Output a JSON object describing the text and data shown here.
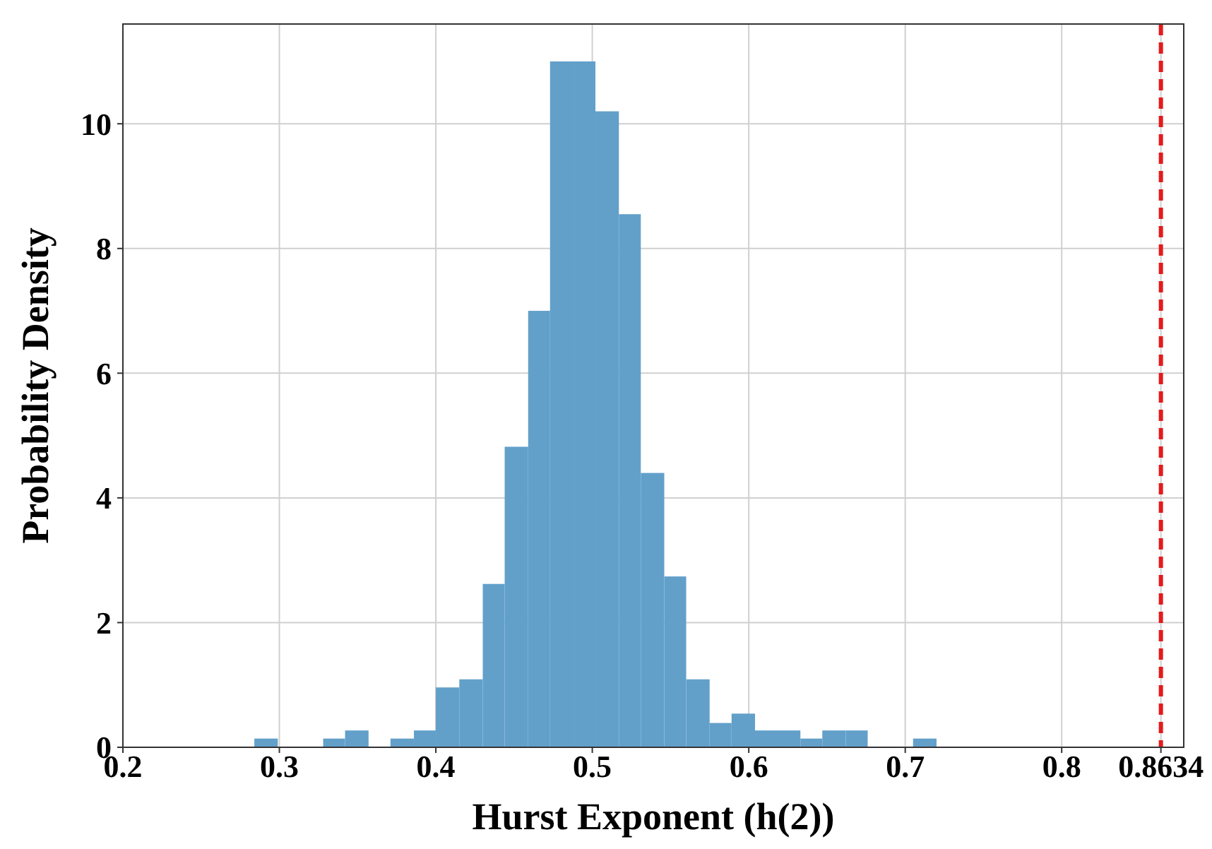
{
  "chart_data": {
    "type": "histogram",
    "xlabel": "Hurst Exponent (h(2))",
    "ylabel": "Probability Density",
    "bins": [
      0.284,
      0.299,
      0.328,
      0.342,
      0.357,
      0.371,
      0.386,
      0.4,
      0.415,
      0.43,
      0.444,
      0.459,
      0.473,
      0.488,
      0.502,
      0.517,
      0.531,
      0.546,
      0.56,
      0.575,
      0.589,
      0.604,
      0.618,
      0.633,
      0.647,
      0.662,
      0.676,
      0.705,
      0.72
    ],
    "values": [
      0.14,
      0,
      0.14,
      0.27,
      0,
      0.14,
      0.27,
      0.96,
      1.09,
      2.62,
      4.82,
      7.0,
      11.0,
      11.0,
      10.2,
      8.55,
      4.4,
      2.74,
      1.09,
      0.39,
      0.54,
      0.27,
      0.27,
      0.14,
      0.27,
      0.27,
      0,
      0.14
    ],
    "color": "#62a0ca",
    "xlim": [
      0.2,
      0.878
    ],
    "xticks": [
      0.2,
      0.3,
      0.4,
      0.5,
      0.6,
      0.7,
      0.8,
      0.8634
    ],
    "ylim": [
      0,
      11.6
    ],
    "yticks": [
      0,
      2,
      4,
      6,
      8,
      10
    ],
    "grid": true,
    "ref_lines": [
      {
        "axis": "x",
        "value": 0.8634,
        "color": "#e41a1c",
        "line_style": "dashed"
      }
    ]
  }
}
